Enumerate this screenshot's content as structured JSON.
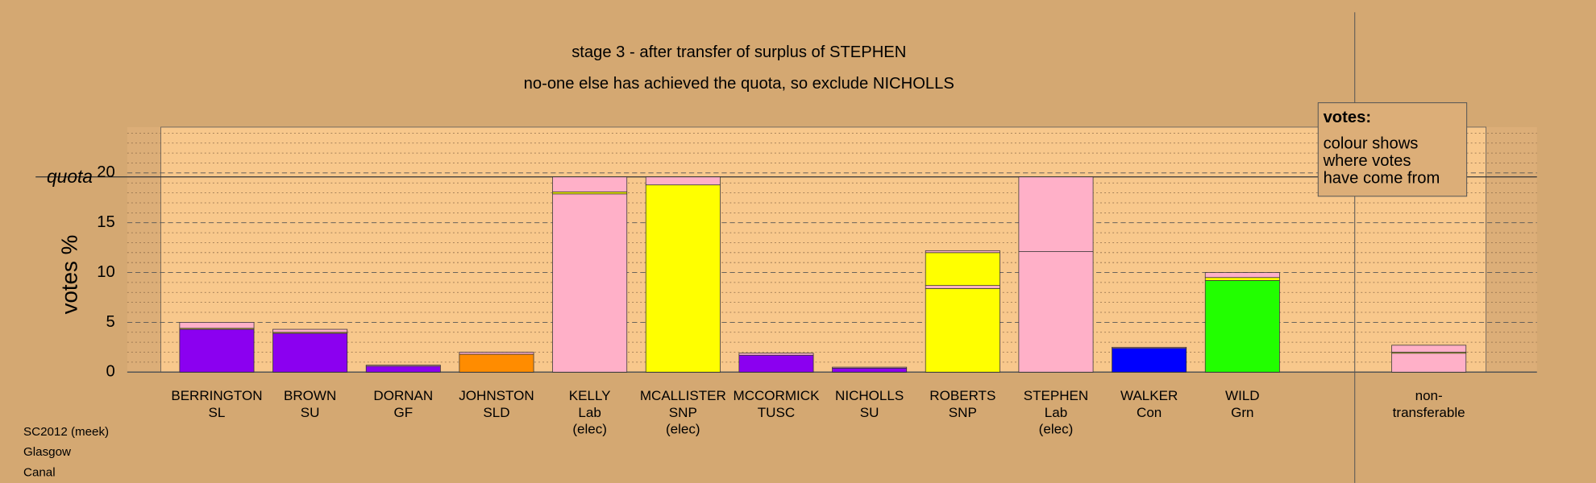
{
  "chart_data": {
    "type": "stacked-bar",
    "title": "stage 3 - after transfer of surplus of STEPHEN",
    "subtitle": "no-one else has achieved the quota, so exclude NICHOLLS",
    "y_label": "votes %",
    "quota": {
      "label": "quota",
      "value": 19.6
    },
    "ylim": [
      0,
      24.6
    ],
    "yticks": [
      0,
      5,
      10,
      15,
      20
    ],
    "minor_yticks": [
      1,
      2,
      3,
      4,
      6,
      7,
      8,
      9,
      11,
      12,
      13,
      14,
      16,
      17,
      18,
      19,
      21,
      22,
      23,
      24
    ],
    "grid": true,
    "categories": [
      [
        "BERRINGTON",
        "SL"
      ],
      [
        "BROWN",
        "SU"
      ],
      [
        "DORNAN",
        "GF"
      ],
      [
        "JOHNSTON",
        "SLD"
      ],
      [
        "KELLY",
        "Lab",
        "(elec)"
      ],
      [
        "MCALLISTER",
        "SNP",
        "(elec)"
      ],
      [
        "MCCORMICK",
        "TUSC"
      ],
      [
        "NICHOLLS",
        "SU"
      ],
      [
        "ROBERTS",
        "SNP"
      ],
      [
        "STEPHEN",
        "Lab",
        "(elec)"
      ],
      [
        "WALKER",
        "Con"
      ],
      [
        "WILD",
        "Grn"
      ],
      [
        "non-",
        "transferable"
      ]
    ],
    "stacks": [
      [
        {
          "value": 4.3,
          "color": "#8b00f0"
        },
        {
          "value": 0.1,
          "color": "#ffff00"
        },
        {
          "value": 0.6,
          "color": "#ffb0c8"
        }
      ],
      [
        {
          "value": 3.9,
          "color": "#8b00f0"
        },
        {
          "value": 0.1,
          "color": "#ffff00"
        },
        {
          "value": 0.3,
          "color": "#ffb0c8"
        }
      ],
      [
        {
          "value": 0.6,
          "color": "#8b00f0"
        },
        {
          "value": 0.1,
          "color": "#ffb0c8"
        }
      ],
      [
        {
          "value": 1.8,
          "color": "#ff8c00"
        },
        {
          "value": 0.2,
          "color": "#ffb0c8"
        }
      ],
      [
        {
          "value": 17.9,
          "color": "#ffb0c8"
        },
        {
          "value": 0.2,
          "color": "#ffff00"
        },
        {
          "value": 1.5,
          "color": "#ffb0c8"
        }
      ],
      [
        {
          "value": 18.8,
          "color": "#ffff00"
        },
        {
          "value": 0.8,
          "color": "#ffb0c8"
        }
      ],
      [
        {
          "value": 1.7,
          "color": "#8b00f0"
        },
        {
          "value": 0.2,
          "color": "#ffb0c8"
        }
      ],
      [
        {
          "value": 0.4,
          "color": "#8b00f0"
        },
        {
          "value": 0.1,
          "color": "#ffb0c8"
        }
      ],
      [
        {
          "value": 8.4,
          "color": "#ffff00"
        },
        {
          "value": 0.3,
          "color": "#ffb0c8"
        },
        {
          "value": 3.3,
          "color": "#ffff00"
        },
        {
          "value": 0.2,
          "color": "#ffb0c8"
        }
      ],
      [
        {
          "value": 12.1,
          "color": "#ffb0c8"
        },
        {
          "value": 7.5,
          "color": "#ffb0c8"
        }
      ],
      [
        {
          "value": 2.4,
          "color": "#0000ff"
        },
        {
          "value": 0.1,
          "color": "#ffb0c8"
        }
      ],
      [
        {
          "value": 9.2,
          "color": "#22ff00"
        },
        {
          "value": 0.3,
          "color": "#ffff00"
        },
        {
          "value": 0.5,
          "color": "#ffb0c8"
        }
      ],
      [
        {
          "value": 1.9,
          "color": "#ffb0c8"
        },
        {
          "value": 0.1,
          "color": "#ffff00"
        },
        {
          "value": 0.7,
          "color": "#ffb0c8"
        }
      ]
    ],
    "legend": {
      "title": "votes:",
      "lines": [
        "colour shows",
        "where votes",
        "have come from"
      ]
    },
    "footer": [
      "SC2012 (meek)",
      "Glasgow",
      "Canal"
    ]
  }
}
